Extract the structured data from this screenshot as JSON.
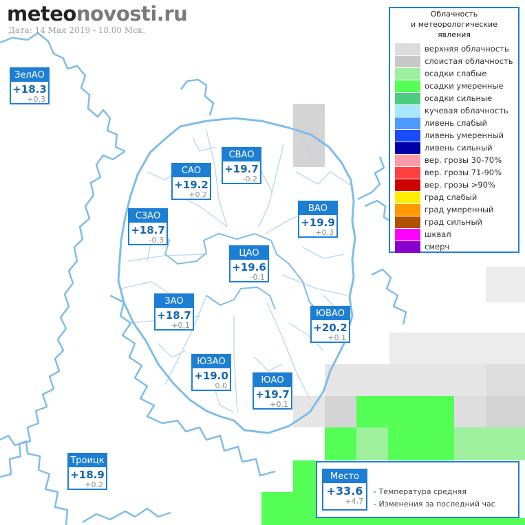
{
  "header": {
    "brand_part1": "meteo",
    "brand_part2": "novosti.ru",
    "date": "Дата: 14 Мая 2019 - 18.00 Мск."
  },
  "districts": [
    {
      "name": "ЗелАО",
      "temp": "+18.3",
      "delta": "+0.3"
    },
    {
      "name": "САО",
      "temp": "+19.2",
      "delta": "+0.2"
    },
    {
      "name": "СВАО",
      "temp": "+19.7",
      "delta": "-0.2"
    },
    {
      "name": "ВАО",
      "temp": "+19.9",
      "delta": "+0.3"
    },
    {
      "name": "СЗАО",
      "temp": "+18.7",
      "delta": "-0.3"
    },
    {
      "name": "ЦАО",
      "temp": "+19.6",
      "delta": "-0.1"
    },
    {
      "name": "ЗАО",
      "temp": "+18.7",
      "delta": "+0.1"
    },
    {
      "name": "ЮВАО",
      "temp": "+20.2",
      "delta": "+0.1"
    },
    {
      "name": "ЮЗАО",
      "temp": "+19.0",
      "delta": "0.0"
    },
    {
      "name": "ЮАО",
      "temp": "+19.7",
      "delta": "+0.1"
    },
    {
      "name": "Троицк",
      "temp": "+18.9",
      "delta": "+0.2"
    }
  ],
  "legend": {
    "title_line1": "Облачность",
    "title_line2": "и метеорологические",
    "title_line3": "явления",
    "items": [
      {
        "label": "верхняя облачность",
        "color": "#dcdcdc"
      },
      {
        "label": "слоистая облачность",
        "color": "#c8c8c8"
      },
      {
        "label": "осадки слабые",
        "color": "#9ef09e"
      },
      {
        "label": "осадки умеренные",
        "color": "#55ff55"
      },
      {
        "label": "осадки сильные",
        "color": "#4ccc80"
      },
      {
        "label": "кучевая облачность",
        "color": "#a8e8ff"
      },
      {
        "label": "ливень слабый",
        "color": "#4d9bff"
      },
      {
        "label": "ливень умеренный",
        "color": "#1a4cff"
      },
      {
        "label": "ливень сильный",
        "color": "#0000a8"
      },
      {
        "label": "вер. грозы 30-70%",
        "color": "#ff9aa8"
      },
      {
        "label": "вер. грозы 71-90%",
        "color": "#ff4040"
      },
      {
        "label": "вер. грозы >90%",
        "color": "#cc0000"
      },
      {
        "label": "град слабый",
        "color": "#ffee00"
      },
      {
        "label": "град умеренный",
        "color": "#ff9900"
      },
      {
        "label": "град сильный",
        "color": "#b05000"
      },
      {
        "label": "шквал",
        "color": "#ff00ff"
      },
      {
        "label": "смерч",
        "color": "#8800cc"
      }
    ]
  },
  "hint": {
    "name": "Место",
    "temp": "+33.6",
    "delta": "+4.7",
    "line1": "- Температура средняя",
    "line2": "- Изменения за последний час"
  },
  "colors": {
    "accent": "#1d7fd4",
    "boundary": "#7fbde8",
    "inner_boundary": "#b8d6ee"
  }
}
